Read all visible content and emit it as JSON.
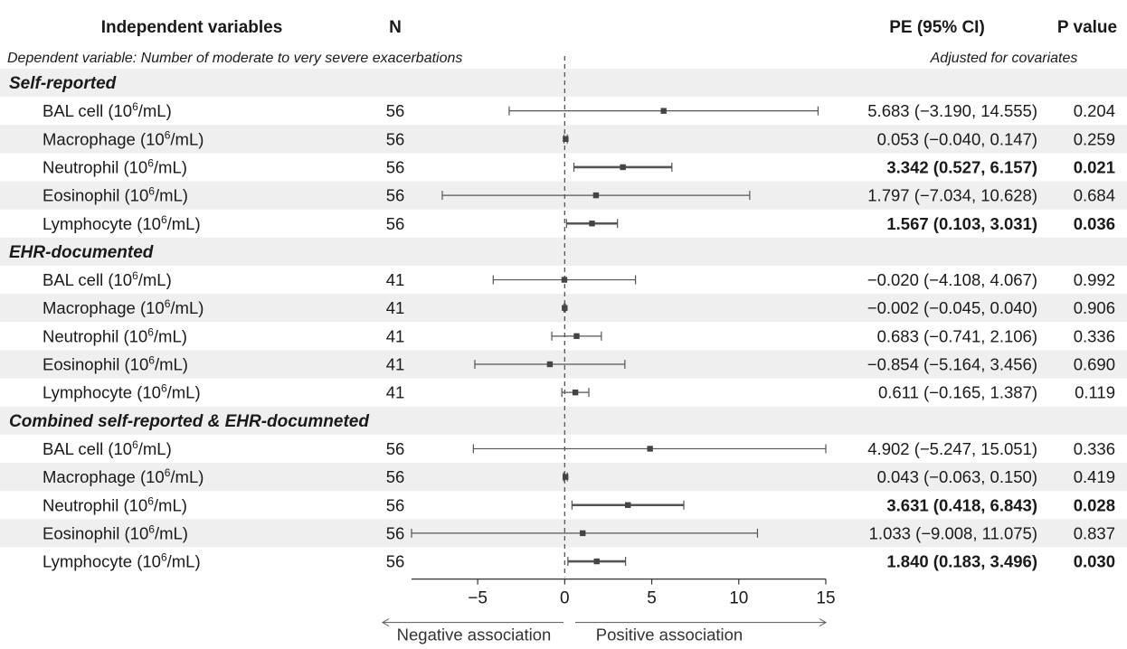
{
  "header": {
    "variables": "Independent variables",
    "n": "N",
    "pe": "PE (95% CI)",
    "p": "P value"
  },
  "subheader": {
    "dependent": "Dependent variable: Number of moderate to very severe exacerbations",
    "adjusted": "Adjusted for covariates"
  },
  "axis": {
    "ticks": [
      -5,
      0,
      5,
      10,
      15
    ],
    "tick_labels": [
      "−5",
      "0",
      "5",
      "10",
      "15"
    ],
    "negative_label": "Negative association",
    "positive_label": "Positive association"
  },
  "chart_data": {
    "type": "forest",
    "xlim": [
      -8.8,
      15
    ],
    "reference_line": 0,
    "groups": [
      {
        "name": "Self-reported",
        "rows": [
          {
            "label_main": "BAL cell (10",
            "label_sup": "6",
            "label_end": "/mL)",
            "n": "56",
            "pe": 5.683,
            "lo": -3.19,
            "hi": 14.555,
            "pe_text": "5.683 (−3.190, 14.555)",
            "p": "0.204",
            "significant": false
          },
          {
            "label_main": "Macrophage (10",
            "label_sup": "6",
            "label_end": "/mL)",
            "n": "56",
            "pe": 0.053,
            "lo": -0.04,
            "hi": 0.147,
            "pe_text": "0.053 (−0.040, 0.147)",
            "p": "0.259",
            "significant": false
          },
          {
            "label_main": "Neutrophil (10",
            "label_sup": "6",
            "label_end": "/mL)",
            "n": "56",
            "pe": 3.342,
            "lo": 0.527,
            "hi": 6.157,
            "pe_text": "3.342 (0.527, 6.157)",
            "p": "0.021",
            "significant": true
          },
          {
            "label_main": "Eosinophil (10",
            "label_sup": "6",
            "label_end": "/mL)",
            "n": "56",
            "pe": 1.797,
            "lo": -7.034,
            "hi": 10.628,
            "pe_text": "1.797 (−7.034, 10.628)",
            "p": "0.684",
            "significant": false
          },
          {
            "label_main": "Lymphocyte (10",
            "label_sup": "6",
            "label_end": "/mL)",
            "n": "56",
            "pe": 1.567,
            "lo": 0.103,
            "hi": 3.031,
            "pe_text": "1.567 (0.103, 3.031)",
            "p": "0.036",
            "significant": true
          }
        ]
      },
      {
        "name": "EHR-documented",
        "rows": [
          {
            "label_main": "BAL cell (10",
            "label_sup": "6",
            "label_end": "/mL)",
            "n": "41",
            "pe": -0.02,
            "lo": -4.108,
            "hi": 4.067,
            "pe_text": "−0.020 (−4.108, 4.067)",
            "p": "0.992",
            "significant": false
          },
          {
            "label_main": "Macrophage (10",
            "label_sup": "6",
            "label_end": "/mL)",
            "n": "41",
            "pe": -0.002,
            "lo": -0.045,
            "hi": 0.04,
            "pe_text": "−0.002 (−0.045, 0.040)",
            "p": "0.906",
            "significant": false
          },
          {
            "label_main": "Neutrophil (10",
            "label_sup": "6",
            "label_end": "/mL)",
            "n": "41",
            "pe": 0.683,
            "lo": -0.741,
            "hi": 2.106,
            "pe_text": "0.683 (−0.741, 2.106)",
            "p": "0.336",
            "significant": false
          },
          {
            "label_main": "Eosinophil (10",
            "label_sup": "6",
            "label_end": "/mL)",
            "n": "41",
            "pe": -0.854,
            "lo": -5.164,
            "hi": 3.456,
            "pe_text": "−0.854 (−5.164, 3.456)",
            "p": "0.690",
            "significant": false
          },
          {
            "label_main": "Lymphocyte (10",
            "label_sup": "6",
            "label_end": "/mL)",
            "n": "41",
            "pe": 0.611,
            "lo": -0.165,
            "hi": 1.387,
            "pe_text": "0.611 (−0.165, 1.387)",
            "p": "0.119",
            "significant": false
          }
        ]
      },
      {
        "name": "Combined self-reported & EHR-documneted",
        "rows": [
          {
            "label_main": "BAL cell (10",
            "label_sup": "6",
            "label_end": "/mL)",
            "n": "56",
            "pe": 4.902,
            "lo": -5.247,
            "hi": 15.051,
            "pe_text": "4.902 (−5.247, 15.051)",
            "p": "0.336",
            "significant": false
          },
          {
            "label_main": "Macrophage (10",
            "label_sup": "6",
            "label_end": "/mL)",
            "n": "56",
            "pe": 0.043,
            "lo": -0.063,
            "hi": 0.15,
            "pe_text": "0.043 (−0.063, 0.150)",
            "p": "0.419",
            "significant": false
          },
          {
            "label_main": "Neutrophil (10",
            "label_sup": "6",
            "label_end": "/mL)",
            "n": "56",
            "pe": 3.631,
            "lo": 0.418,
            "hi": 6.843,
            "pe_text": "3.631 (0.418, 6.843)",
            "p": "0.028",
            "significant": true
          },
          {
            "label_main": "Eosinophil (10",
            "label_sup": "6",
            "label_end": "/mL)",
            "n": "56",
            "pe": 1.033,
            "lo": -9.008,
            "hi": 11.075,
            "pe_text": "1.033 (−9.008, 11.075)",
            "p": "0.837",
            "significant": false
          },
          {
            "label_main": "Lymphocyte (10",
            "label_sup": "6",
            "label_end": "/mL)",
            "n": "56",
            "pe": 1.84,
            "lo": 0.183,
            "hi": 3.496,
            "pe_text": "1.840 (0.183, 3.496)",
            "p": "0.030",
            "significant": true
          }
        ]
      }
    ]
  },
  "colors": {
    "band": "#efefef",
    "text": "#1a1a1a",
    "ci_line": "#555555",
    "point": "#444444",
    "ref_line": "#555555"
  }
}
